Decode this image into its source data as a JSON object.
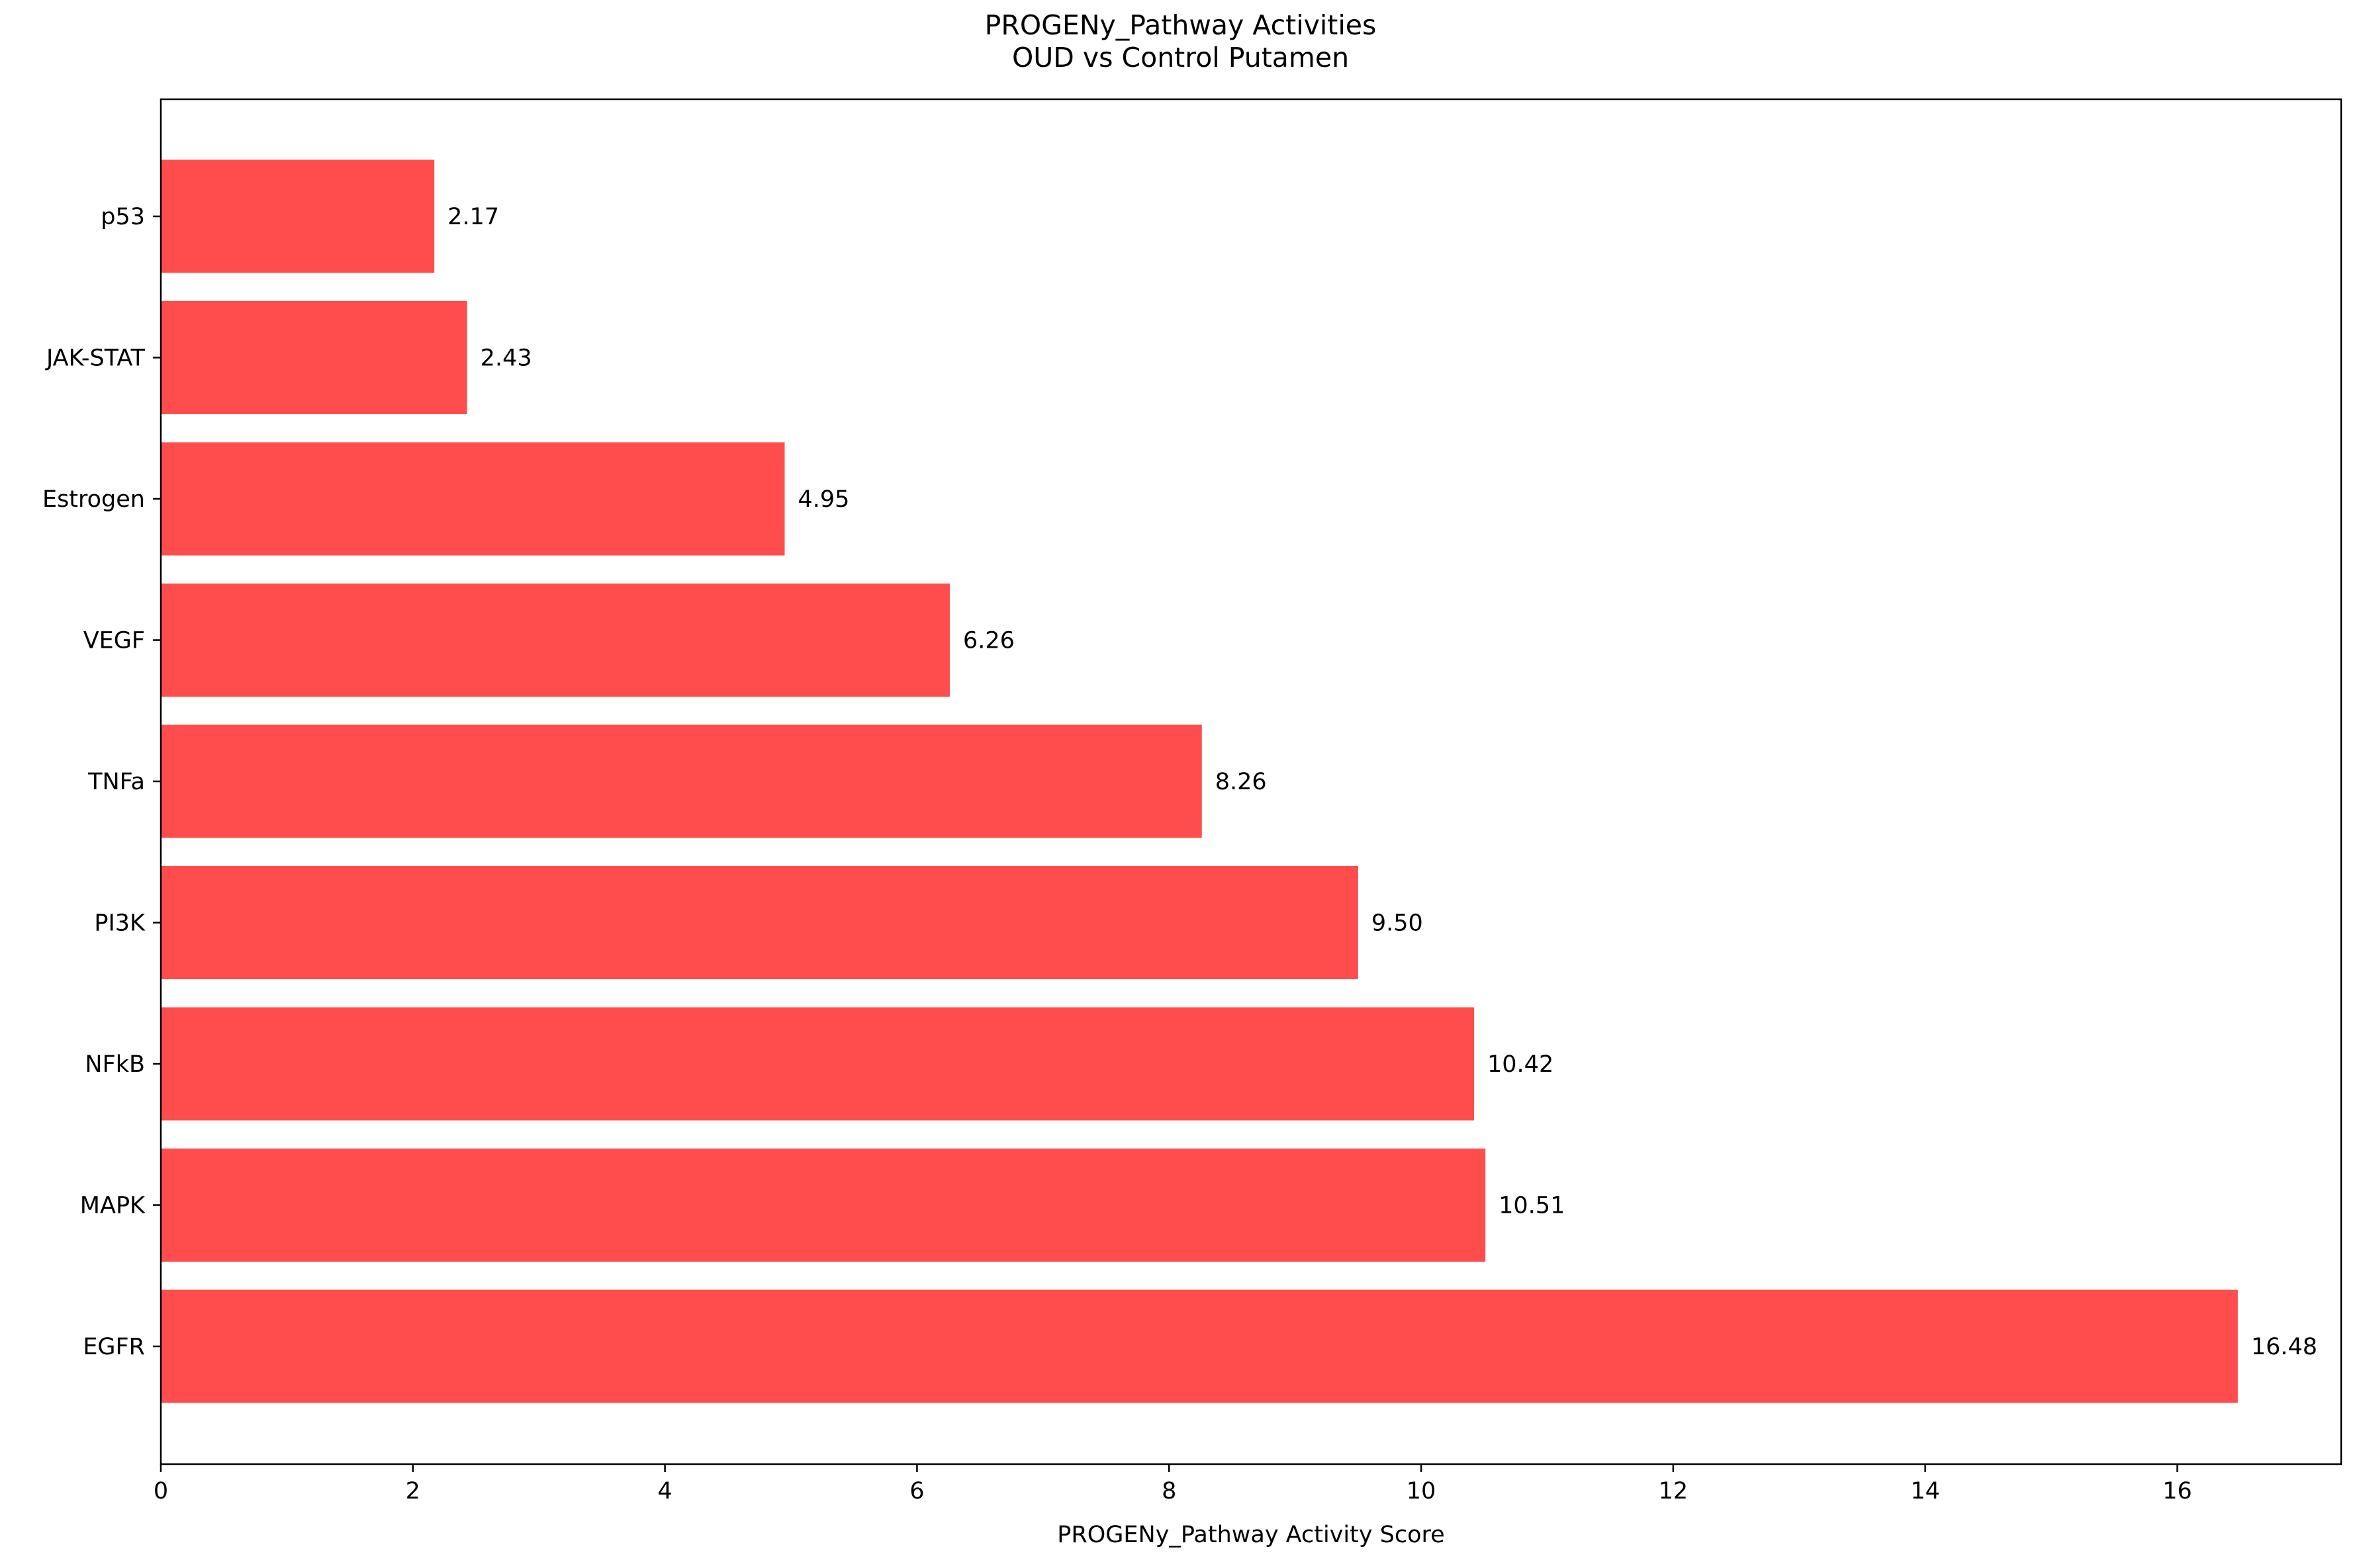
{
  "chart_data": {
    "type": "bar",
    "orientation": "horizontal",
    "title": "PROGENy_Pathway Activities",
    "subtitle": "OUD vs Control Putamen",
    "xlabel": "PROGENy_Pathway Activity Score",
    "ylabel": "",
    "categories": [
      "EGFR",
      "MAPK",
      "NFkB",
      "PI3K",
      "TNFa",
      "VEGF",
      "Estrogen",
      "JAK-STAT",
      "p53"
    ],
    "values": [
      16.48,
      10.51,
      10.42,
      9.5,
      8.26,
      6.26,
      4.95,
      2.43,
      2.17
    ],
    "data_labels": [
      "16.48",
      "10.51",
      "10.42",
      "9.50",
      "8.26",
      "6.26",
      "4.95",
      "2.43",
      "2.17"
    ],
    "xlim": [
      0,
      17.3
    ],
    "xticks": [
      0,
      2,
      4,
      6,
      8,
      10,
      12,
      14,
      16
    ],
    "xtick_labels": [
      "0",
      "2",
      "4",
      "6",
      "8",
      "10",
      "12",
      "14",
      "16"
    ],
    "bar_color": "#ff4d4d",
    "grid": false,
    "legend": "none"
  }
}
